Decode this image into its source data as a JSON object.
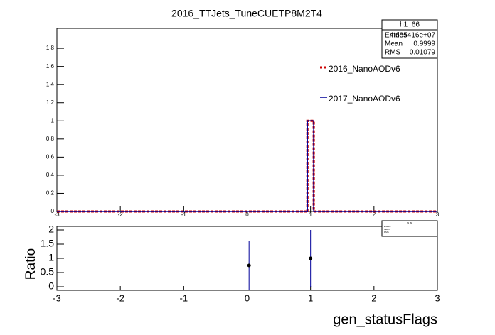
{
  "chart_data": [
    {
      "type": "histogram",
      "title": "2016_TTJets_TuneCUETP8M2T4",
      "bins": [
        -3,
        0.95,
        1.05,
        3
      ],
      "series": [
        {
          "name": "2016_NanoAODv6",
          "color": "#cc0000",
          "dash": true,
          "counts": [
            0,
            1,
            0
          ]
        },
        {
          "name": "2017_NanoAODv6",
          "color": "#000099",
          "dash": false,
          "counts": [
            0,
            1,
            0
          ]
        }
      ],
      "xlim": [
        -3,
        3
      ],
      "xticks": [
        -3,
        -2,
        -1,
        0,
        1,
        2,
        3
      ],
      "ylim": [
        0,
        2.02
      ],
      "yticks": [
        0,
        0.2,
        0.4,
        0.6,
        0.8,
        1,
        1.2,
        1.4,
        1.6,
        1.8
      ],
      "stats": {
        "title": "h1_66",
        "rows": [
          [
            "Entries",
            "4.685416e+07"
          ],
          [
            "Mean",
            "0.9999"
          ],
          [
            "RMS",
            "0.01079"
          ]
        ]
      }
    },
    {
      "type": "errorbar",
      "y_label": "Ratio",
      "x_label": "gen_statusFlags",
      "x": [
        0.03,
        1
      ],
      "values": [
        0.75,
        1
      ],
      "errors": [
        0.87,
        1.0
      ],
      "color": "#000099",
      "xlim": [
        -3,
        3
      ],
      "xticks": [
        -3,
        -2,
        -1,
        0,
        1,
        2,
        3
      ],
      "ylim": [
        -0.125,
        2.125
      ],
      "yticks": [
        0,
        0.5,
        1,
        1.5,
        2
      ]
    }
  ]
}
